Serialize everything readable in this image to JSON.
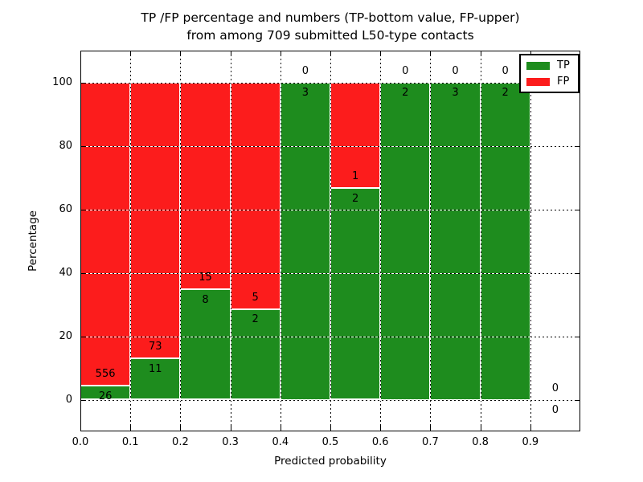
{
  "chart_data": {
    "type": "bar",
    "stacked": true,
    "orientation": "vertical",
    "title_line1": "TP /FP percentage and numbers (TP-bottom value, FP-upper)",
    "title_line2": "from among 709 submitted L50-type contacts",
    "xlabel": "Predicted probability",
    "ylabel": "Percentage",
    "xlim": [
      0.0,
      1.0
    ],
    "ylim": [
      -10,
      110
    ],
    "grid": true,
    "legend_position": "upper right",
    "xticks": [
      0.0,
      0.1,
      0.2,
      0.3,
      0.4,
      0.5,
      0.6,
      0.7,
      0.8,
      0.9
    ],
    "yticks": [
      0,
      20,
      40,
      60,
      80,
      100
    ],
    "bar_unit": "percent of bin total",
    "bins": [
      {
        "x_start": 0.0,
        "x_end": 0.1,
        "tp": 26,
        "fp": 556
      },
      {
        "x_start": 0.1,
        "x_end": 0.2,
        "tp": 11,
        "fp": 73
      },
      {
        "x_start": 0.2,
        "x_end": 0.3,
        "tp": 8,
        "fp": 15
      },
      {
        "x_start": 0.3,
        "x_end": 0.4,
        "tp": 2,
        "fp": 5
      },
      {
        "x_start": 0.4,
        "x_end": 0.5,
        "tp": 3,
        "fp": 0
      },
      {
        "x_start": 0.5,
        "x_end": 0.6,
        "tp": 2,
        "fp": 1
      },
      {
        "x_start": 0.6,
        "x_end": 0.7,
        "tp": 2,
        "fp": 0
      },
      {
        "x_start": 0.7,
        "x_end": 0.8,
        "tp": 3,
        "fp": 0
      },
      {
        "x_start": 0.8,
        "x_end": 0.9,
        "tp": 2,
        "fp": 0
      },
      {
        "x_start": 0.9,
        "x_end": 1.0,
        "tp": 0,
        "fp": 0
      }
    ],
    "series": [
      {
        "name": "TP",
        "color": "#1e8c1e",
        "values": [
          26,
          11,
          8,
          2,
          3,
          2,
          2,
          3,
          2,
          0
        ]
      },
      {
        "name": "FP",
        "color": "#fc1c1c",
        "values": [
          556,
          73,
          15,
          5,
          0,
          1,
          0,
          0,
          0,
          0
        ]
      }
    ]
  }
}
